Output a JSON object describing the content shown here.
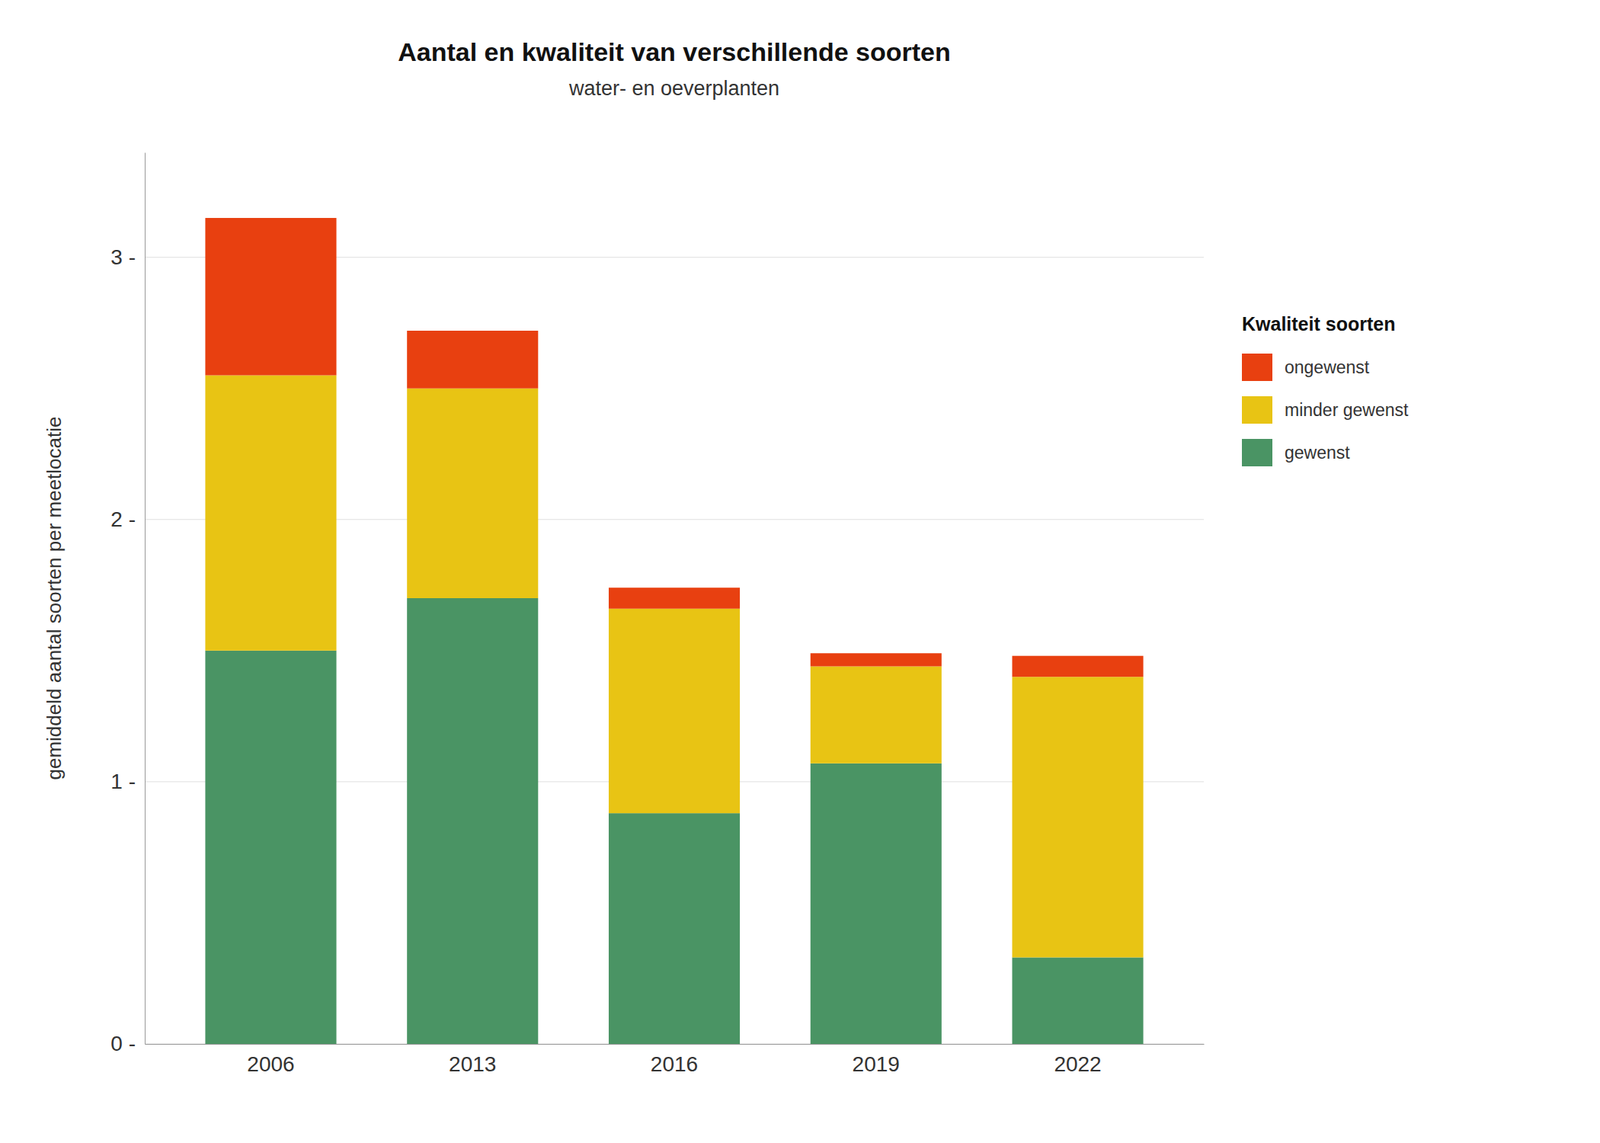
{
  "chart_data": {
    "type": "bar",
    "stacked": true,
    "title": "Aantal en kwaliteit van verschillende soorten",
    "subtitle": "water- en oeverplanten",
    "ylabel": "gemiddeld aantal soorten per meetlocatie",
    "legend_title": "Kwaliteit soorten",
    "legend": "right",
    "grid": true,
    "categories": [
      "2006",
      "2013",
      "2016",
      "2019",
      "2022"
    ],
    "series": [
      {
        "name": "gewenst",
        "color": "#4a9464",
        "values": [
          1.5,
          1.7,
          0.88,
          1.07,
          0.33
        ]
      },
      {
        "name": "minder gewenst",
        "color": "#e8c414",
        "values": [
          1.05,
          0.8,
          0.78,
          0.37,
          1.07
        ]
      },
      {
        "name": "ongewenst",
        "color": "#e84010",
        "values": [
          0.6,
          0.22,
          0.08,
          0.05,
          0.08
        ]
      }
    ],
    "ylim": [
      0,
      3.4
    ],
    "yticks": [
      {
        "value": 0,
        "label": "0 -"
      },
      {
        "value": 1,
        "label": "1 -"
      },
      {
        "value": 2,
        "label": "2 -"
      },
      {
        "value": 3,
        "label": "3 -"
      }
    ]
  }
}
